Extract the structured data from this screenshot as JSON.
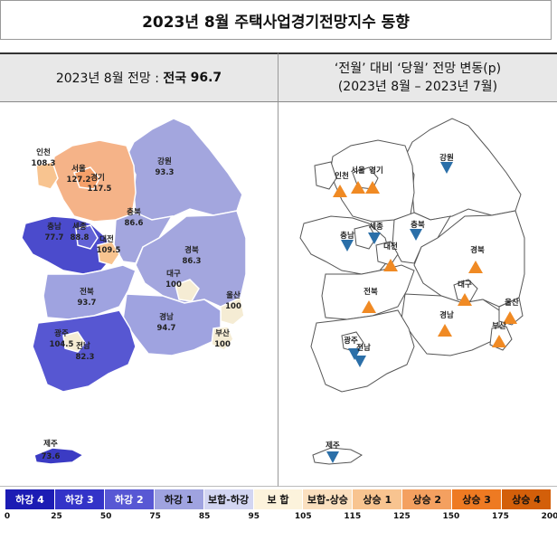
{
  "title": "2023년 8월 주택사업경기전망지수 동향",
  "left_header": {
    "prefix": "2023년 8월 전망 :",
    "national_label": "전국",
    "national_value": "96.7"
  },
  "right_header": {
    "line1": "‘전월’ 대비 ‘당월’ 전망 변동(p)",
    "line2": "(2023년 8월 – 2023년 7월)"
  },
  "regions": [
    {
      "name": "인천",
      "value": "108.3",
      "change": "up"
    },
    {
      "name": "서울",
      "value": "127.2",
      "change": "up"
    },
    {
      "name": "경기",
      "value": "117.5",
      "change": "up"
    },
    {
      "name": "강원",
      "value": "93.3",
      "change": "down"
    },
    {
      "name": "충남",
      "value": "77.7",
      "change": "down"
    },
    {
      "name": "세종",
      "value": "88.8",
      "change": "down"
    },
    {
      "name": "충북",
      "value": "86.6",
      "change": "down"
    },
    {
      "name": "대전",
      "value": "109.5",
      "change": "up"
    },
    {
      "name": "경북",
      "value": "86.3",
      "change": "up"
    },
    {
      "name": "대구",
      "value": "100",
      "change": "up"
    },
    {
      "name": "전북",
      "value": "93.7",
      "change": "up"
    },
    {
      "name": "울산",
      "value": "100",
      "change": "up"
    },
    {
      "name": "경남",
      "value": "94.7",
      "change": "up"
    },
    {
      "name": "부산",
      "value": "100",
      "change": "up"
    },
    {
      "name": "광주",
      "value": "104.5",
      "change": "down"
    },
    {
      "name": "전남",
      "value": "82.3",
      "change": "down"
    },
    {
      "name": "제주",
      "value": "73.6",
      "change": "down"
    }
  ],
  "legend": [
    {
      "label": "하강 4",
      "color": "#1c1cb4",
      "text_color": "#ffffff"
    },
    {
      "label": "하강 3",
      "color": "#3333c8",
      "text_color": "#ffffff"
    },
    {
      "label": "하강 2",
      "color": "#5858d4",
      "text_color": "#ffffff"
    },
    {
      "label": "하강 1",
      "color": "#9fa3e0",
      "text_color": "#111111"
    },
    {
      "label": "보합-하강",
      "color": "#d3d6f2",
      "text_color": "#111111"
    },
    {
      "label": "보 합",
      "color": "#fcf3dc",
      "text_color": "#111111"
    },
    {
      "label": "보합-상승",
      "color": "#fbe0bf",
      "text_color": "#111111"
    },
    {
      "label": "상승 1",
      "color": "#f8c490",
      "text_color": "#111111"
    },
    {
      "label": "상승 2",
      "color": "#f4a060",
      "text_color": "#111111"
    },
    {
      "label": "상승 3",
      "color": "#ee7a22",
      "text_color": "#111111"
    },
    {
      "label": "상승 4",
      "color": "#d35f0a",
      "text_color": "#111111"
    }
  ],
  "scale_ticks": [
    "0",
    "25",
    "50",
    "75",
    "85",
    "95",
    "105",
    "115",
    "125",
    "150",
    "175",
    "200"
  ],
  "colors": {
    "up_marker": "#f08a24",
    "down_marker": "#2b6fa8"
  }
}
